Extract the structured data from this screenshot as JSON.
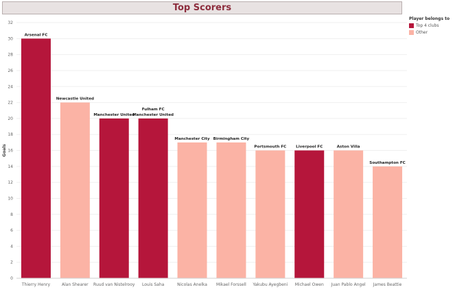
{
  "title": "Top Scorers",
  "legend": {
    "title": "Player belongs to",
    "items": [
      {
        "label": "Top 4 clubs",
        "color": "#b5163b"
      },
      {
        "label": "Other",
        "color": "#fbb3a5"
      }
    ]
  },
  "chart_data": {
    "type": "bar",
    "title": "Top Scorers",
    "xlabel": "",
    "ylabel": "Goals",
    "ylim": [
      0,
      32
    ],
    "yticks": [
      0,
      2,
      4,
      6,
      8,
      10,
      12,
      14,
      16,
      18,
      20,
      22,
      24,
      26,
      28,
      30,
      32
    ],
    "grid": true,
    "legend_position": "top-right",
    "categories": [
      "Thierry Henry",
      "Alan Shearer",
      "Ruud van Nistelrooy",
      "Louis Saha",
      "Nicolas Anelka",
      "Mikael Forssell",
      "Yakubu Ayegbeni",
      "Michael Owen",
      "Juan Pablo Angel",
      "James Beattie"
    ],
    "values": [
      30,
      22,
      20,
      20,
      17,
      17,
      16,
      16,
      16,
      14
    ],
    "clubs": [
      "Arsenal FC",
      "Newcastle United",
      "Manchester United",
      "Fulham FC\nManchester United",
      "Manchester City",
      "Birmingham City",
      "Portsmouth FC",
      "Liverpool FC",
      "Aston Villa",
      "Southampton FC"
    ],
    "group": [
      "Top 4 clubs",
      "Other",
      "Top 4 clubs",
      "Top 4 clubs",
      "Other",
      "Other",
      "Other",
      "Top 4 clubs",
      "Other",
      "Other"
    ]
  }
}
